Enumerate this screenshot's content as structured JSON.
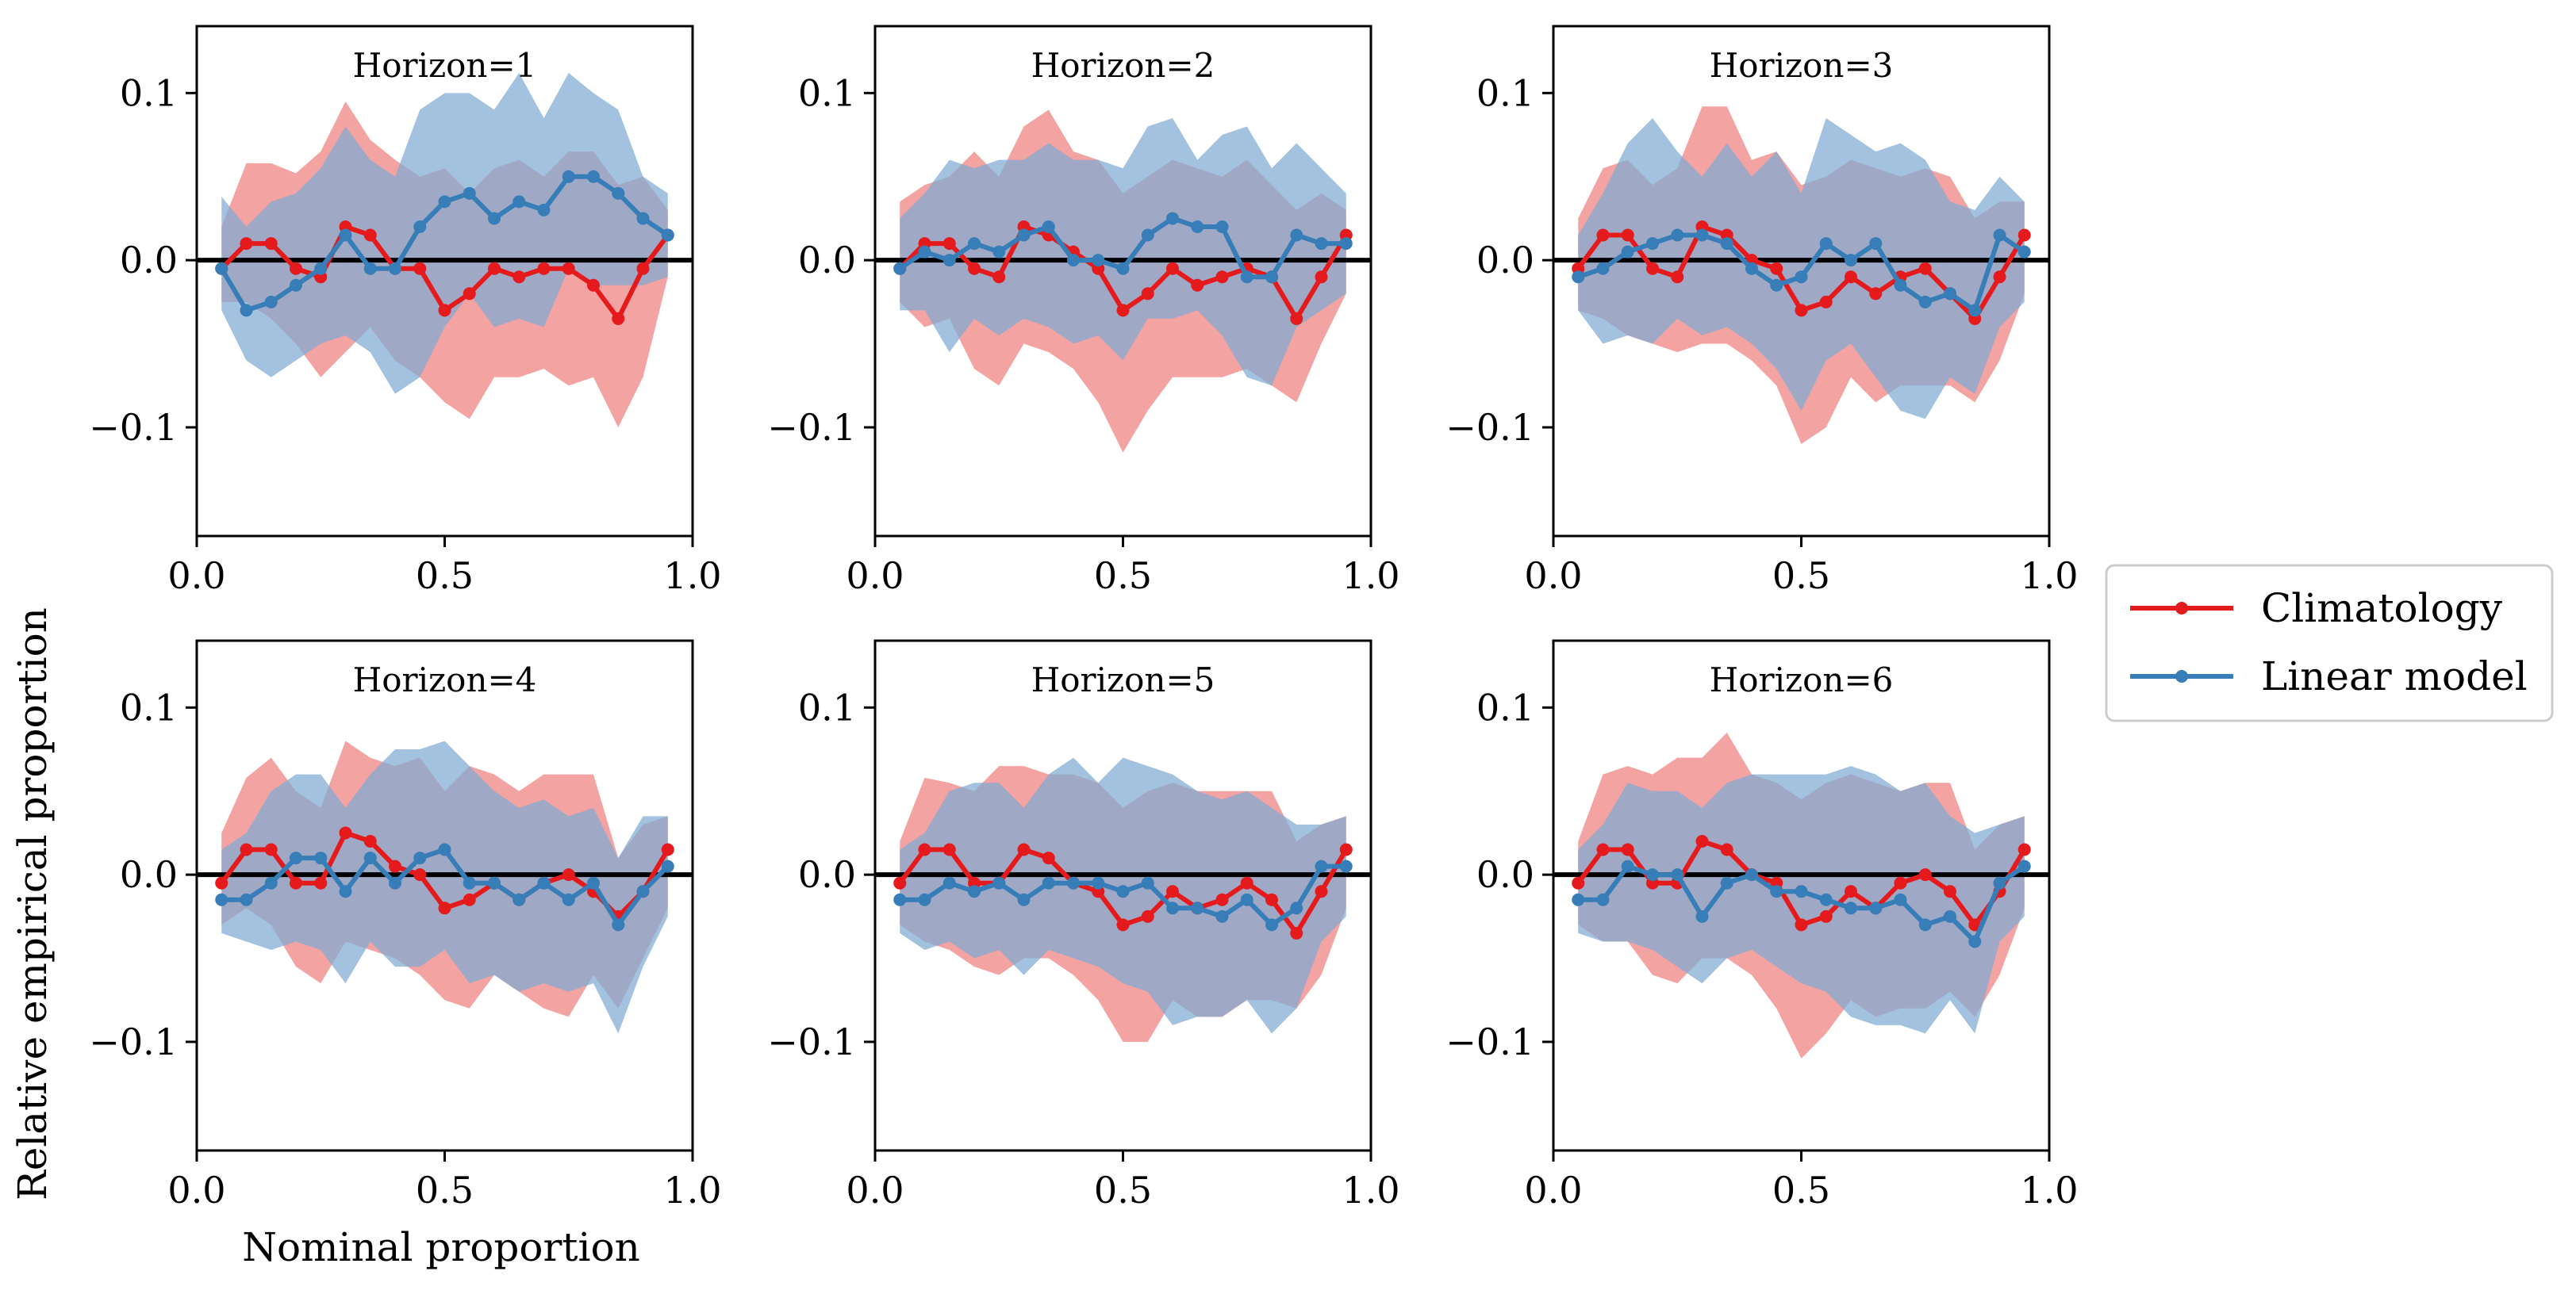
{
  "chart_data": {
    "type": "line",
    "ylabel": "Relative empirical proportion",
    "xlabel": "Nominal proportion",
    "xlim": [
      0.0,
      1.0
    ],
    "ylim": [
      -0.165,
      0.14
    ],
    "xticks": [
      0.0,
      0.5,
      1.0
    ],
    "xtick_labels": [
      "0.0",
      "0.5",
      "1.0"
    ],
    "yticks": [
      -0.1,
      0.0,
      0.1
    ],
    "ytick_labels": [
      "−0.1",
      "0.0",
      "0.1"
    ],
    "legend_position": "right",
    "colors": {
      "climatology": "#e41a1c",
      "linear": "#377eb8",
      "climatology_band": "#f08080",
      "linear_band": "#7eaad3",
      "zero_line": "#000000"
    },
    "x": [
      0.05,
      0.1,
      0.15,
      0.2,
      0.25,
      0.3,
      0.35,
      0.4,
      0.45,
      0.5,
      0.55,
      0.6,
      0.65,
      0.7,
      0.75,
      0.8,
      0.85,
      0.9,
      0.95
    ],
    "legend": [
      {
        "key": "climatology",
        "label": "Climatology"
      },
      {
        "key": "linear",
        "label": "Linear model"
      }
    ],
    "panels": [
      {
        "title": "Horizon=1",
        "series": [
          {
            "key": "climatology",
            "values": [
              -0.005,
              0.01,
              0.01,
              -0.005,
              -0.01,
              0.02,
              0.015,
              -0.005,
              -0.005,
              -0.03,
              -0.02,
              -0.005,
              -0.01,
              -0.005,
              -0.005,
              -0.015,
              -0.035,
              -0.005,
              0.015
            ],
            "upper": [
              0.02,
              0.058,
              0.058,
              0.052,
              0.065,
              0.095,
              0.072,
              0.06,
              0.05,
              0.055,
              0.04,
              0.055,
              0.06,
              0.05,
              0.065,
              0.065,
              0.045,
              0.05,
              0.03
            ],
            "lower": [
              -0.025,
              -0.025,
              -0.035,
              -0.05,
              -0.07,
              -0.055,
              -0.04,
              -0.06,
              -0.07,
              -0.085,
              -0.095,
              -0.07,
              -0.07,
              -0.065,
              -0.075,
              -0.07,
              -0.1,
              -0.07,
              -0.01
            ]
          },
          {
            "key": "linear",
            "values": [
              -0.005,
              -0.03,
              -0.025,
              -0.015,
              -0.005,
              0.015,
              -0.005,
              -0.005,
              0.02,
              0.035,
              0.04,
              0.025,
              0.035,
              0.03,
              0.05,
              0.05,
              0.04,
              0.025,
              0.015
            ],
            "upper": [
              0.038,
              0.02,
              0.035,
              0.04,
              0.055,
              0.08,
              0.06,
              0.05,
              0.09,
              0.1,
              0.1,
              0.09,
              0.112,
              0.085,
              0.112,
              0.1,
              0.09,
              0.05,
              0.04
            ],
            "lower": [
              -0.03,
              -0.06,
              -0.07,
              -0.06,
              -0.05,
              -0.045,
              -0.055,
              -0.08,
              -0.07,
              -0.04,
              -0.02,
              -0.04,
              -0.035,
              -0.04,
              -0.005,
              -0.015,
              -0.015,
              -0.015,
              -0.01
            ]
          }
        ]
      },
      {
        "title": "Horizon=2",
        "series": [
          {
            "key": "climatology",
            "values": [
              -0.005,
              0.01,
              0.01,
              -0.005,
              -0.01,
              0.02,
              0.015,
              0.005,
              -0.005,
              -0.03,
              -0.02,
              -0.005,
              -0.015,
              -0.01,
              -0.005,
              -0.01,
              -0.035,
              -0.01,
              0.015
            ],
            "upper": [
              0.035,
              0.045,
              0.05,
              0.065,
              0.05,
              0.08,
              0.09,
              0.065,
              0.06,
              0.04,
              0.05,
              0.06,
              0.055,
              0.05,
              0.06,
              0.045,
              0.03,
              0.04,
              0.03
            ],
            "lower": [
              -0.025,
              -0.04,
              -0.035,
              -0.065,
              -0.075,
              -0.05,
              -0.055,
              -0.065,
              -0.085,
              -0.115,
              -0.09,
              -0.07,
              -0.07,
              -0.07,
              -0.065,
              -0.075,
              -0.085,
              -0.05,
              -0.02
            ]
          },
          {
            "key": "linear",
            "values": [
              -0.005,
              0.005,
              0.0,
              0.01,
              0.005,
              0.015,
              0.02,
              0.0,
              0.0,
              -0.005,
              0.015,
              0.025,
              0.02,
              0.02,
              -0.01,
              -0.01,
              0.015,
              0.01,
              0.01
            ],
            "upper": [
              0.025,
              0.04,
              0.06,
              0.055,
              0.06,
              0.06,
              0.07,
              0.06,
              0.06,
              0.055,
              0.08,
              0.085,
              0.06,
              0.075,
              0.08,
              0.055,
              0.07,
              0.055,
              0.04
            ],
            "lower": [
              -0.03,
              -0.03,
              -0.055,
              -0.035,
              -0.045,
              -0.035,
              -0.04,
              -0.05,
              -0.045,
              -0.06,
              -0.035,
              -0.035,
              -0.03,
              -0.045,
              -0.07,
              -0.075,
              -0.04,
              -0.03,
              -0.02
            ]
          }
        ]
      },
      {
        "title": "Horizon=3",
        "series": [
          {
            "key": "climatology",
            "values": [
              -0.005,
              0.015,
              0.015,
              -0.005,
              -0.01,
              0.02,
              0.015,
              0.0,
              -0.005,
              -0.03,
              -0.025,
              -0.01,
              -0.02,
              -0.01,
              -0.005,
              -0.02,
              -0.035,
              -0.01,
              0.015
            ],
            "upper": [
              0.025,
              0.055,
              0.06,
              0.045,
              0.055,
              0.092,
              0.092,
              0.06,
              0.065,
              0.045,
              0.05,
              0.06,
              0.055,
              0.05,
              0.055,
              0.05,
              0.025,
              0.035,
              0.035
            ],
            "lower": [
              -0.03,
              -0.035,
              -0.045,
              -0.05,
              -0.055,
              -0.05,
              -0.05,
              -0.06,
              -0.075,
              -0.11,
              -0.1,
              -0.07,
              -0.085,
              -0.075,
              -0.075,
              -0.075,
              -0.085,
              -0.06,
              -0.02
            ]
          },
          {
            "key": "linear",
            "values": [
              -0.01,
              -0.005,
              0.005,
              0.01,
              0.015,
              0.015,
              0.01,
              -0.005,
              -0.015,
              -0.01,
              0.01,
              0.0,
              0.01,
              -0.015,
              -0.025,
              -0.02,
              -0.03,
              0.015,
              0.005
            ],
            "upper": [
              0.015,
              0.04,
              0.07,
              0.085,
              0.065,
              0.05,
              0.07,
              0.05,
              0.065,
              0.04,
              0.085,
              0.075,
              0.065,
              0.07,
              0.06,
              0.035,
              0.03,
              0.05,
              0.035
            ],
            "lower": [
              -0.03,
              -0.05,
              -0.045,
              -0.05,
              -0.035,
              -0.045,
              -0.04,
              -0.05,
              -0.065,
              -0.09,
              -0.06,
              -0.05,
              -0.07,
              -0.09,
              -0.095,
              -0.07,
              -0.08,
              -0.04,
              -0.025
            ]
          }
        ]
      },
      {
        "title": "Horizon=4",
        "series": [
          {
            "key": "climatology",
            "values": [
              -0.005,
              0.015,
              0.015,
              -0.005,
              -0.005,
              0.025,
              0.02,
              0.005,
              0.0,
              -0.02,
              -0.015,
              -0.005,
              -0.015,
              -0.005,
              0.0,
              -0.01,
              -0.025,
              -0.01,
              0.015
            ],
            "upper": [
              0.025,
              0.058,
              0.07,
              0.05,
              0.04,
              0.08,
              0.07,
              0.065,
              0.07,
              0.05,
              0.065,
              0.06,
              0.05,
              0.06,
              0.06,
              0.06,
              0.01,
              0.03,
              0.035
            ],
            "lower": [
              -0.03,
              -0.02,
              -0.03,
              -0.055,
              -0.065,
              -0.04,
              -0.045,
              -0.05,
              -0.06,
              -0.075,
              -0.08,
              -0.06,
              -0.07,
              -0.08,
              -0.085,
              -0.06,
              -0.08,
              -0.05,
              -0.02
            ]
          },
          {
            "key": "linear",
            "values": [
              -0.015,
              -0.015,
              -0.005,
              0.01,
              0.01,
              -0.01,
              0.01,
              -0.005,
              0.01,
              0.015,
              -0.005,
              -0.005,
              -0.015,
              -0.005,
              -0.015,
              -0.005,
              -0.03,
              -0.01,
              0.005
            ],
            "upper": [
              0.015,
              0.025,
              0.05,
              0.06,
              0.06,
              0.04,
              0.06,
              0.075,
              0.075,
              0.08,
              0.065,
              0.05,
              0.04,
              0.045,
              0.035,
              0.04,
              0.01,
              0.035,
              0.035
            ],
            "lower": [
              -0.035,
              -0.04,
              -0.045,
              -0.04,
              -0.045,
              -0.065,
              -0.04,
              -0.055,
              -0.055,
              -0.045,
              -0.065,
              -0.06,
              -0.07,
              -0.065,
              -0.07,
              -0.065,
              -0.095,
              -0.055,
              -0.025
            ]
          }
        ]
      },
      {
        "title": "Horizon=5",
        "series": [
          {
            "key": "climatology",
            "values": [
              -0.005,
              0.015,
              0.015,
              -0.005,
              -0.005,
              0.015,
              0.01,
              -0.005,
              -0.01,
              -0.03,
              -0.025,
              -0.01,
              -0.02,
              -0.015,
              -0.005,
              -0.015,
              -0.035,
              -0.01,
              0.015
            ],
            "upper": [
              0.02,
              0.058,
              0.055,
              0.05,
              0.065,
              0.065,
              0.06,
              0.06,
              0.055,
              0.04,
              0.05,
              0.055,
              0.05,
              0.05,
              0.05,
              0.05,
              0.02,
              0.03,
              0.035
            ],
            "lower": [
              -0.03,
              -0.04,
              -0.045,
              -0.055,
              -0.06,
              -0.05,
              -0.05,
              -0.06,
              -0.075,
              -0.1,
              -0.1,
              -0.075,
              -0.085,
              -0.085,
              -0.075,
              -0.075,
              -0.08,
              -0.06,
              -0.02
            ]
          },
          {
            "key": "linear",
            "values": [
              -0.015,
              -0.015,
              -0.005,
              -0.01,
              -0.005,
              -0.015,
              -0.005,
              -0.005,
              -0.005,
              -0.01,
              -0.005,
              -0.02,
              -0.02,
              -0.025,
              -0.015,
              -0.03,
              -0.02,
              0.005,
              0.005
            ],
            "upper": [
              0.015,
              0.025,
              0.05,
              0.055,
              0.055,
              0.04,
              0.06,
              0.07,
              0.055,
              0.07,
              0.065,
              0.06,
              0.05,
              0.045,
              0.05,
              0.04,
              0.03,
              0.03,
              0.035
            ],
            "lower": [
              -0.035,
              -0.045,
              -0.04,
              -0.05,
              -0.045,
              -0.06,
              -0.045,
              -0.05,
              -0.055,
              -0.065,
              -0.07,
              -0.09,
              -0.085,
              -0.085,
              -0.075,
              -0.095,
              -0.08,
              -0.04,
              -0.025
            ]
          }
        ]
      },
      {
        "title": "Horizon=6",
        "series": [
          {
            "key": "climatology",
            "values": [
              -0.005,
              0.015,
              0.015,
              -0.005,
              -0.005,
              0.02,
              0.015,
              0.0,
              -0.005,
              -0.03,
              -0.025,
              -0.01,
              -0.02,
              -0.005,
              0.0,
              -0.01,
              -0.03,
              -0.01,
              0.015
            ],
            "upper": [
              0.02,
              0.06,
              0.065,
              0.06,
              0.07,
              0.07,
              0.085,
              0.06,
              0.055,
              0.045,
              0.055,
              0.06,
              0.055,
              0.05,
              0.055,
              0.055,
              0.015,
              0.03,
              0.035
            ],
            "lower": [
              -0.03,
              -0.04,
              -0.04,
              -0.06,
              -0.065,
              -0.05,
              -0.05,
              -0.06,
              -0.08,
              -0.11,
              -0.095,
              -0.075,
              -0.085,
              -0.08,
              -0.08,
              -0.07,
              -0.085,
              -0.06,
              -0.02
            ]
          },
          {
            "key": "linear",
            "values": [
              -0.015,
              -0.015,
              0.005,
              0.0,
              0.0,
              -0.025,
              -0.005,
              0.0,
              -0.01,
              -0.01,
              -0.015,
              -0.02,
              -0.02,
              -0.015,
              -0.03,
              -0.025,
              -0.04,
              -0.005,
              0.005
            ],
            "upper": [
              0.015,
              0.03,
              0.055,
              0.05,
              0.05,
              0.04,
              0.055,
              0.06,
              0.06,
              0.06,
              0.06,
              0.065,
              0.06,
              0.05,
              0.055,
              0.035,
              0.025,
              0.03,
              0.035
            ],
            "lower": [
              -0.035,
              -0.04,
              -0.04,
              -0.045,
              -0.055,
              -0.065,
              -0.05,
              -0.045,
              -0.055,
              -0.065,
              -0.07,
              -0.085,
              -0.09,
              -0.09,
              -0.095,
              -0.075,
              -0.095,
              -0.04,
              -0.025
            ]
          }
        ]
      }
    ]
  }
}
